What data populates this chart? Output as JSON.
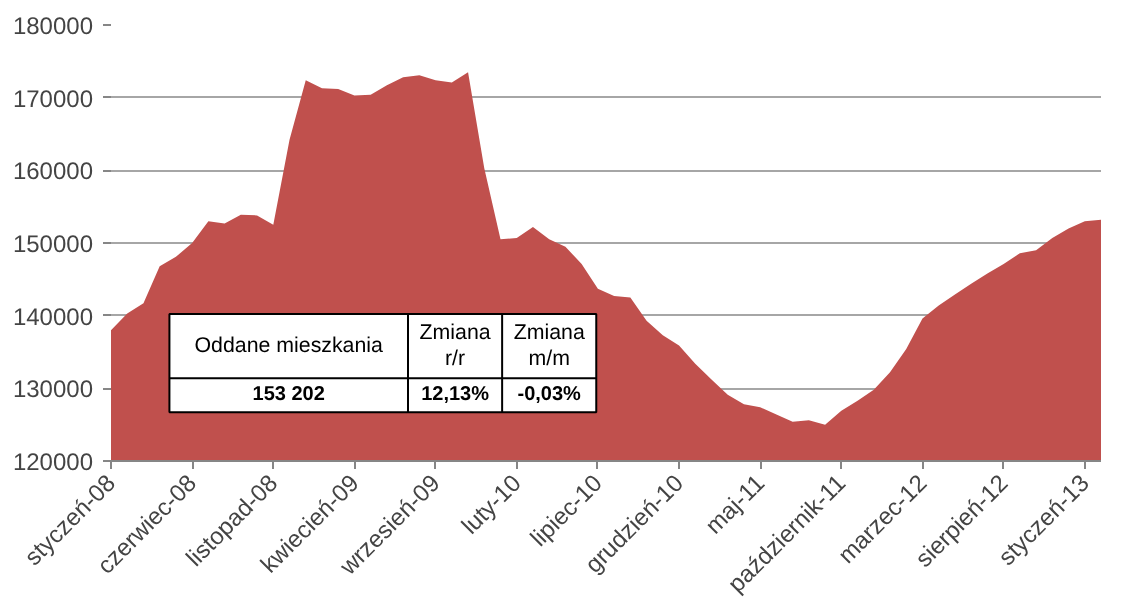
{
  "chart_data": {
    "type": "area",
    "categories": [
      "styczeń-08",
      null,
      null,
      null,
      null,
      "czerwiec-08",
      null,
      null,
      null,
      null,
      "listopad-08",
      null,
      null,
      null,
      null,
      "kwiecień-09",
      null,
      null,
      null,
      null,
      "wrzesień-09",
      null,
      null,
      null,
      null,
      "luty-10",
      null,
      null,
      null,
      null,
      "lipiec-10",
      null,
      null,
      null,
      null,
      "grudzień-10",
      null,
      null,
      null,
      null,
      "maj-11",
      null,
      null,
      null,
      null,
      "październik-11",
      null,
      null,
      null,
      null,
      "marzec-12",
      null,
      null,
      null,
      null,
      "sierpień-12",
      null,
      null,
      null,
      null,
      "styczeń-13",
      null
    ],
    "series": [
      {
        "color": "#c0504d",
        "values": [
          138000,
          140300,
          141700,
          146800,
          148100,
          150000,
          153000,
          152700,
          153900,
          153800,
          152500,
          164200,
          172400,
          171300,
          171200,
          170300,
          170400,
          171700,
          172800,
          173100,
          172400,
          172100,
          173500,
          160300,
          150500,
          150700,
          152200,
          150500,
          149500,
          147100,
          143700,
          142700,
          142500,
          139300,
          137300,
          135900,
          133400,
          131200,
          129100,
          127800,
          127400,
          126400,
          125400,
          125600,
          125000,
          126900,
          128300,
          129800,
          132200,
          135400,
          139600,
          141400,
          142900,
          144400,
          145800,
          147100,
          148600,
          149000,
          150700,
          152000,
          153000,
          153202
        ]
      }
    ],
    "ylim": [
      120000,
      180000
    ],
    "yticks": [
      120000,
      130000,
      140000,
      150000,
      160000,
      170000,
      180000
    ],
    "grid": "y",
    "annotations": [
      "Oddane mieszkania",
      "Zmiana r/r",
      "Zmiana m/m",
      "153 202",
      "12,13%",
      "-0,03%"
    ]
  }
}
